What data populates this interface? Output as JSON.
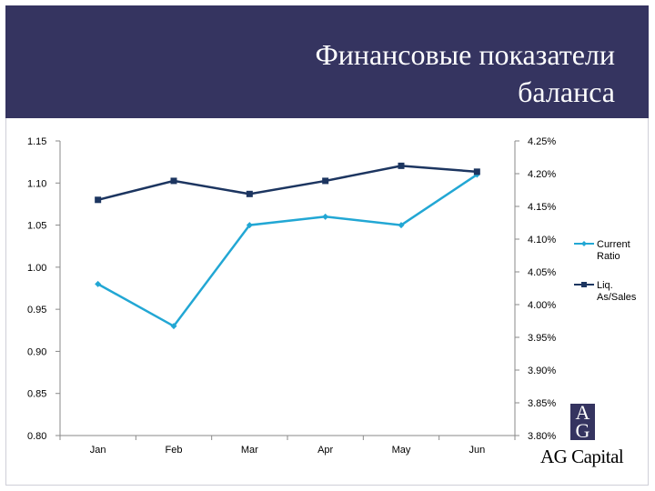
{
  "slide": {
    "title_line1": "Финансовые показатели",
    "title_line2": "баланса"
  },
  "logo": {
    "mark_top": "A",
    "mark_bottom": "G",
    "text": "AG Capital"
  },
  "colors": {
    "header_bg": "#353460",
    "current_ratio": "#22a7d4",
    "liq_as_sales": "#1c3560"
  },
  "chart_data": {
    "type": "line",
    "categories": [
      "Jan",
      "Feb",
      "Mar",
      "Apr",
      "May",
      "Jun"
    ],
    "series": [
      {
        "name": "Current Ratio",
        "axis": "left",
        "marker": "diamond",
        "values": [
          0.98,
          0.93,
          1.05,
          1.06,
          1.05,
          1.11
        ]
      },
      {
        "name": "Liq. As/Sales",
        "axis": "right",
        "marker": "square",
        "values": [
          4.16,
          4.189,
          4.169,
          4.189,
          4.212,
          4.203
        ]
      }
    ],
    "y_left": {
      "range": [
        0.8,
        1.15
      ],
      "ticks": [
        "1.15",
        "1.10",
        "1.05",
        "1.00",
        "0.95",
        "0.90",
        "0.85",
        "0.80"
      ]
    },
    "y_right": {
      "range": [
        3.8,
        4.25
      ],
      "ticks": [
        "4.25%",
        "4.20%",
        "4.15%",
        "4.10%",
        "4.05%",
        "4.00%",
        "3.95%",
        "3.90%",
        "3.85%",
        "3.80%"
      ]
    },
    "grid": false,
    "legend_position": "right"
  }
}
